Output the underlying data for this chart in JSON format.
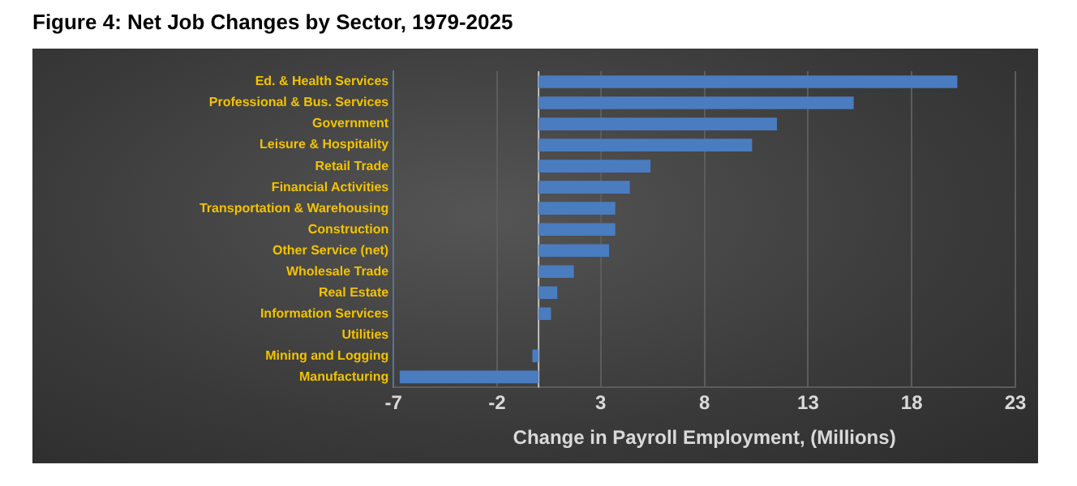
{
  "chart_data": {
    "type": "bar",
    "orientation": "horizontal",
    "title": "Figure 4: Net Job Changes by Sector, 1979-2025",
    "xlabel": "Change in Payroll Employment, (Millions)",
    "categories": [
      "Ed. & Health Services",
      "Professional & Bus. Services",
      "Government",
      "Leisure & Hospitality",
      "Retail Trade",
      "Financial Activities",
      "Transportation & Warehousing",
      "Construction",
      "Other Service (net)",
      "Wholesale Trade",
      "Real Estate",
      "Information Services",
      "Utilities",
      "Mining and Logging",
      "Manufacturing"
    ],
    "values": [
      20.2,
      15.2,
      11.5,
      10.3,
      5.4,
      4.4,
      3.7,
      3.7,
      3.4,
      1.7,
      0.9,
      0.6,
      0,
      -0.3,
      -6.7
    ],
    "color": "#4a7cc0",
    "xlim": [
      -7,
      23
    ],
    "xticks": [
      -7,
      -2,
      3,
      8,
      13,
      18,
      23
    ],
    "grid": "x"
  }
}
